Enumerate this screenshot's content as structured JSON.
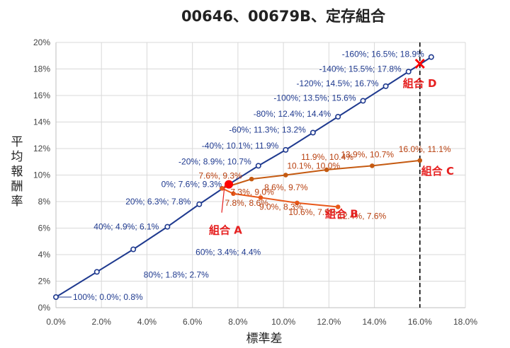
{
  "chart_data": {
    "type": "scatter",
    "title": "00646、00679B、定存組合",
    "xlabel": "標準差",
    "ylabel": "平均報酬率",
    "xlim": [
      0,
      18
    ],
    "ylim": [
      0,
      20
    ],
    "x_ticks": [
      "0.0%",
      "2.0%",
      "4.0%",
      "6.0%",
      "8.0%",
      "10.0%",
      "12.0%",
      "14.0%",
      "16.0%",
      "18.0%"
    ],
    "y_ticks": [
      "0%",
      "2%",
      "4%",
      "6%",
      "8%",
      "10%",
      "12%",
      "14%",
      "16%",
      "18%",
      "20%"
    ],
    "grid": true,
    "reference_line_x": 16.0,
    "series": [
      {
        "color": "#1f3a8f",
        "points": [
          {
            "x": 0.0,
            "y": 0.8,
            "label": "100%; 0.0%; 0.8%"
          },
          {
            "x": 1.8,
            "y": 2.7,
            "label": "80%; 1.8%; 2.7%"
          },
          {
            "x": 3.4,
            "y": 4.4,
            "label": "60%; 3.4%; 4.4%"
          },
          {
            "x": 4.9,
            "y": 6.1,
            "label": "40%; 4.9%; 6.1%"
          },
          {
            "x": 6.3,
            "y": 7.8,
            "label": "20%; 6.3%; 7.8%"
          },
          {
            "x": 7.6,
            "y": 9.3,
            "label": "0%; 7.6%; 9.3%"
          },
          {
            "x": 8.9,
            "y": 10.7,
            "label": "-20%; 8.9%; 10.7%"
          },
          {
            "x": 10.1,
            "y": 11.9,
            "label": "-40%; 10.1%; 11.9%"
          },
          {
            "x": 11.3,
            "y": 13.2,
            "label": "-60%; 11.3%; 13.2%"
          },
          {
            "x": 12.4,
            "y": 14.4,
            "label": "-80%; 12.4%; 14.4%"
          },
          {
            "x": 13.5,
            "y": 15.6,
            "label": "-100%; 13.5%; 15.6%"
          },
          {
            "x": 14.5,
            "y": 16.7,
            "label": "-120%; 14.5%; 16.7%"
          },
          {
            "x": 15.5,
            "y": 17.8,
            "label": "-140%; 15.5%; 17.8%"
          },
          {
            "x": 16.5,
            "y": 18.9,
            "label": "-160%; 16.5%; 18.9%"
          }
        ]
      },
      {
        "name": "組合 C",
        "color": "#c55a11",
        "points": [
          {
            "x": 7.3,
            "y": 9.0,
            "label": "7.3%, 9.0%"
          },
          {
            "x": 8.6,
            "y": 9.7,
            "label": "8.6%, 9.7%"
          },
          {
            "x": 10.1,
            "y": 10.0,
            "label": "10.1%, 10.0%"
          },
          {
            "x": 11.9,
            "y": 10.4,
            "label": "11.9%, 10.4%"
          },
          {
            "x": 13.9,
            "y": 10.7,
            "label": "13.9%, 10.7%"
          },
          {
            "x": 16.0,
            "y": 11.1,
            "label": "16.0%, 11.1%"
          }
        ]
      },
      {
        "name": "組合 B",
        "color": "#e8581a",
        "points": [
          {
            "x": 7.3,
            "y": 9.0,
            "label": ""
          },
          {
            "x": 7.8,
            "y": 8.6,
            "label": "7.8%, 8.6%"
          },
          {
            "x": 9.0,
            "y": 8.3,
            "label": "9.0%, 8.3%"
          },
          {
            "x": 10.6,
            "y": 7.9,
            "label": "10.6%, 7.9%"
          },
          {
            "x": 12.4,
            "y": 7.6,
            "label": "12.4%, 7.6%"
          }
        ]
      }
    ],
    "highlights": [
      {
        "name": "組合 A",
        "x": 7.6,
        "y": 9.3,
        "label": "7.6%, 9.3%",
        "marker": "dot",
        "color": "#ff0000"
      },
      {
        "name": "組合 D",
        "x": 16.0,
        "y": 18.4,
        "label": "",
        "marker": "x",
        "color": "#ff0000"
      }
    ]
  }
}
